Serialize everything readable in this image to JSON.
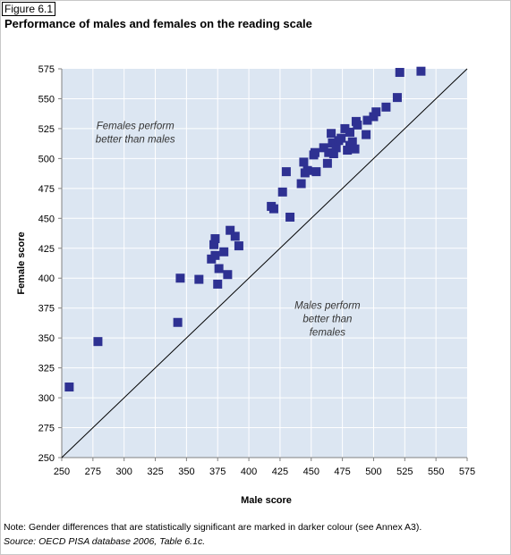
{
  "figure_label": "Figure 6.1",
  "title": "Performance of males and females on the reading scale",
  "note": "Note: Gender differences that are statistically significant are marked in darker colour (see Annex A3).",
  "source": "Source: OECD PISA database 2006, Table 6.1c.",
  "colors": {
    "plot_bg": "#dce6f2",
    "marker": "#2e3192",
    "grid": "#ffffff",
    "diagonal": "#000000"
  },
  "chart_data": {
    "type": "scatter",
    "title": "Performance of males and females on the reading scale",
    "xlabel": "Male score",
    "ylabel": "Female score",
    "xlim": [
      250,
      575
    ],
    "ylim": [
      250,
      575
    ],
    "xticks": [
      "250",
      "275",
      "300",
      "325",
      "350",
      "375",
      "400",
      "425",
      "450",
      "475",
      "500",
      "525",
      "550",
      "575"
    ],
    "yticks": [
      "575",
      "550",
      "525",
      "500",
      "475",
      "450",
      "425",
      "400",
      "375",
      "350",
      "325",
      "300",
      "275",
      "250"
    ],
    "grid": true,
    "reference_line": "y = x",
    "annotations": [
      {
        "lines": [
          "Females perform",
          "better than males"
        ],
        "x": 309,
        "y": 522
      },
      {
        "lines": [
          "Males perform",
          "better than",
          "females"
        ],
        "x": 463,
        "y": 366
      }
    ],
    "points": [
      {
        "x": 256,
        "y": 309
      },
      {
        "x": 279,
        "y": 347
      },
      {
        "x": 343,
        "y": 363
      },
      {
        "x": 345,
        "y": 400
      },
      {
        "x": 360,
        "y": 399
      },
      {
        "x": 370,
        "y": 416
      },
      {
        "x": 372,
        "y": 428
      },
      {
        "x": 373,
        "y": 419
      },
      {
        "x": 373,
        "y": 433
      },
      {
        "x": 375,
        "y": 395
      },
      {
        "x": 376,
        "y": 408
      },
      {
        "x": 380,
        "y": 422
      },
      {
        "x": 383,
        "y": 403
      },
      {
        "x": 385,
        "y": 440
      },
      {
        "x": 389,
        "y": 435
      },
      {
        "x": 392,
        "y": 427
      },
      {
        "x": 418,
        "y": 460
      },
      {
        "x": 420,
        "y": 458
      },
      {
        "x": 427,
        "y": 472
      },
      {
        "x": 430,
        "y": 489
      },
      {
        "x": 433,
        "y": 451
      },
      {
        "x": 442,
        "y": 479
      },
      {
        "x": 444,
        "y": 497
      },
      {
        "x": 445,
        "y": 488
      },
      {
        "x": 447,
        "y": 490
      },
      {
        "x": 452,
        "y": 503
      },
      {
        "x": 453,
        "y": 505
      },
      {
        "x": 454,
        "y": 489
      },
      {
        "x": 460,
        "y": 509
      },
      {
        "x": 463,
        "y": 496
      },
      {
        "x": 464,
        "y": 505
      },
      {
        "x": 466,
        "y": 521
      },
      {
        "x": 467,
        "y": 513
      },
      {
        "x": 468,
        "y": 504
      },
      {
        "x": 470,
        "y": 509
      },
      {
        "x": 472,
        "y": 515
      },
      {
        "x": 474,
        "y": 517
      },
      {
        "x": 477,
        "y": 525
      },
      {
        "x": 479,
        "y": 507
      },
      {
        "x": 481,
        "y": 511
      },
      {
        "x": 481,
        "y": 522
      },
      {
        "x": 483,
        "y": 514
      },
      {
        "x": 485,
        "y": 508
      },
      {
        "x": 486,
        "y": 531
      },
      {
        "x": 487,
        "y": 528
      },
      {
        "x": 494,
        "y": 520
      },
      {
        "x": 495,
        "y": 532
      },
      {
        "x": 500,
        "y": 535
      },
      {
        "x": 502,
        "y": 539
      },
      {
        "x": 510,
        "y": 543
      },
      {
        "x": 519,
        "y": 551
      },
      {
        "x": 521,
        "y": 572
      },
      {
        "x": 538,
        "y": 573
      }
    ]
  }
}
